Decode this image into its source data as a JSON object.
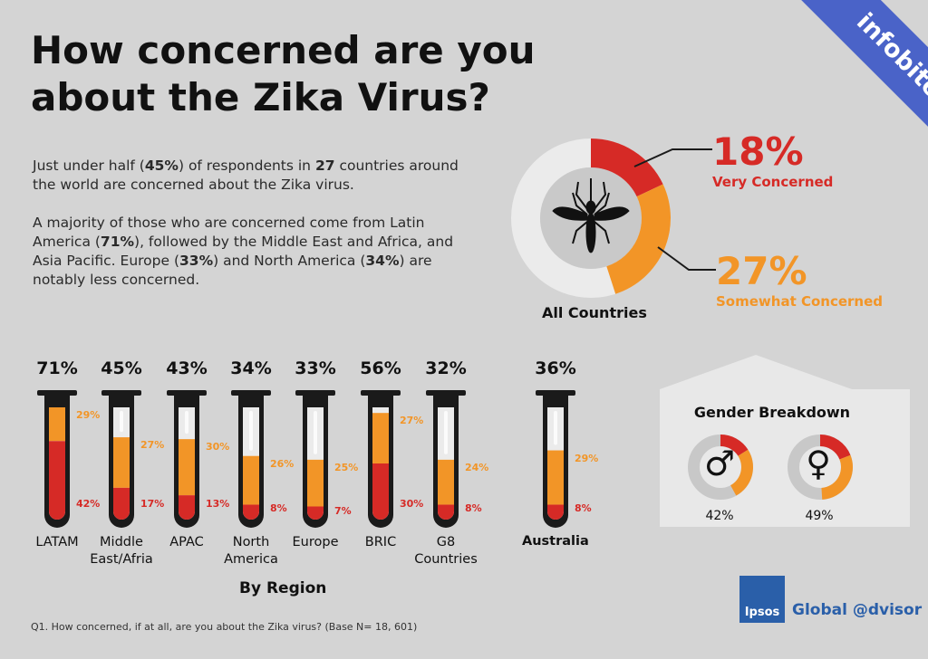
{
  "title": "How concerned are you about the Zika Virus?",
  "ribbon": "infobite",
  "intro": {
    "p1": [
      {
        "t": "Just under half (",
        "b": false
      },
      {
        "t": "45%",
        "b": true
      },
      {
        "t": ") of respondents in ",
        "b": false
      },
      {
        "t": "27",
        "b": true
      },
      {
        "t": " countries around the world are concerned about the Zika virus.",
        "b": false
      }
    ],
    "p2": [
      {
        "t": "A majority of those who are concerned come from Latin America (",
        "b": false
      },
      {
        "t": "71%",
        "b": true
      },
      {
        "t": "), followed by the Middle East and Africa, and Asia Pacific. Europe (",
        "b": false
      },
      {
        "t": "33%",
        "b": true
      },
      {
        "t": ") and North America (",
        "b": false
      },
      {
        "t": "34%",
        "b": true
      },
      {
        "t": ") are notably less concerned.",
        "b": false
      }
    ]
  },
  "colors": {
    "very": "#d62a26",
    "somewhat": "#f29527",
    "tube": "#1a1a1a",
    "glass": "#ebebeb",
    "ribbon": "#4a63c8",
    "brand": "#2a5fa9"
  },
  "donut": {
    "label": "All Countries",
    "very_pct": "18%",
    "very_label": "Very Concerned",
    "very_value": 18,
    "somewhat_pct": "27%",
    "somewhat_label": "Somewhat Concerned",
    "somewhat_value": 27
  },
  "chart_data": {
    "type": "bar",
    "title": "By Region",
    "categories": [
      "LATAM",
      "Middle East/Afria",
      "APAC",
      "North America",
      "Europe",
      "BRIC",
      "G8 Countries",
      "Australia"
    ],
    "totals": [
      "71%",
      "45%",
      "43%",
      "34%",
      "33%",
      "56%",
      "32%",
      "36%"
    ],
    "series": [
      {
        "name": "Very Concerned",
        "values": [
          42,
          17,
          13,
          8,
          7,
          30,
          8,
          8
        ],
        "labels": [
          "42%",
          "17%",
          "13%",
          "8%",
          "7%",
          "30%",
          "8%",
          "8%"
        ]
      },
      {
        "name": "Somewhat Concerned",
        "values": [
          29,
          27,
          30,
          26,
          25,
          27,
          24,
          29
        ],
        "labels": [
          "29%",
          "27%",
          "30%",
          "26%",
          "25%",
          "27%",
          "24%",
          "29%"
        ]
      }
    ],
    "ylim": [
      0,
      100
    ]
  },
  "regions": [
    {
      "total": "71%",
      "name": [
        "LATAM"
      ]
    },
    {
      "total": "45%",
      "name": [
        "Middle",
        "East/Afria"
      ]
    },
    {
      "total": "43%",
      "name": [
        "APAC"
      ]
    },
    {
      "total": "34%",
      "name": [
        "North",
        "America"
      ]
    },
    {
      "total": "33%",
      "name": [
        "Europe"
      ]
    },
    {
      "total": "56%",
      "name": [
        "BRIC"
      ]
    },
    {
      "total": "32%",
      "name": [
        "G8",
        "Countries"
      ]
    },
    {
      "total": "36%",
      "name": [
        "Australia"
      ]
    }
  ],
  "gender": {
    "title": "Gender Breakdown",
    "male_symbol": "♂",
    "female_symbol": "♀",
    "male_pct": "42%",
    "female_pct": "49%",
    "male_value": 42,
    "female_value": 49,
    "male_very": 16,
    "female_very": 19
  },
  "footnote": "Q1. How concerned, if at all, are you about the Zika virus? (Base N= 18, 601)",
  "logo": {
    "brand": "Ipsos",
    "product": "Global @dvisor"
  }
}
